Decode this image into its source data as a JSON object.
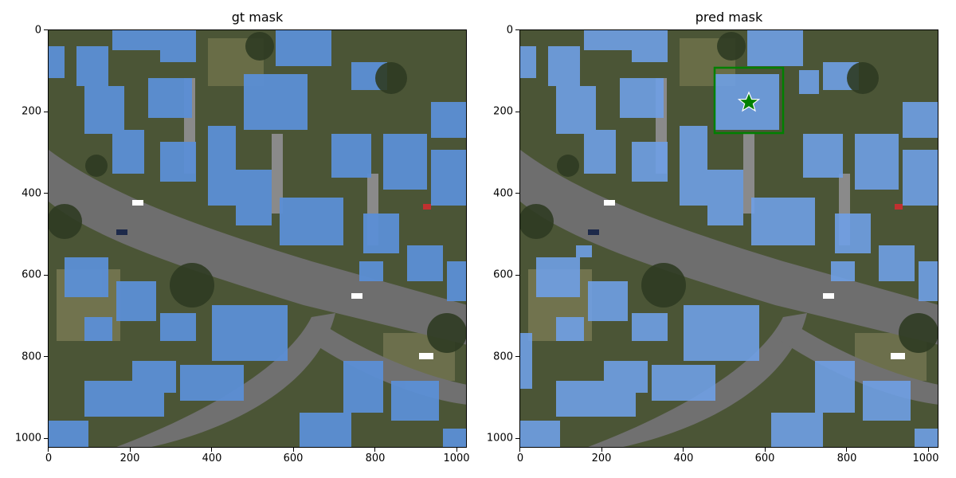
{
  "panels": [
    {
      "title": "gt mask",
      "xticks": [
        "0",
        "200",
        "400",
        "600",
        "800",
        "1000"
      ],
      "yticks": [
        "0",
        "200",
        "400",
        "600",
        "800",
        "1000"
      ]
    },
    {
      "title": "pred mask",
      "xticks": [
        "0",
        "200",
        "400",
        "600",
        "800",
        "1000"
      ],
      "yticks": [
        "0",
        "200",
        "400",
        "600",
        "800",
        "1000"
      ],
      "box_color": "#008000",
      "marker": "star-icon",
      "marker_color": "#008000"
    }
  ],
  "colors": {
    "mask_blue": "#5b8fd6",
    "vegetation": "#3f4a2c",
    "road": "#6e6e6e",
    "lawn": "#7a7a55"
  }
}
